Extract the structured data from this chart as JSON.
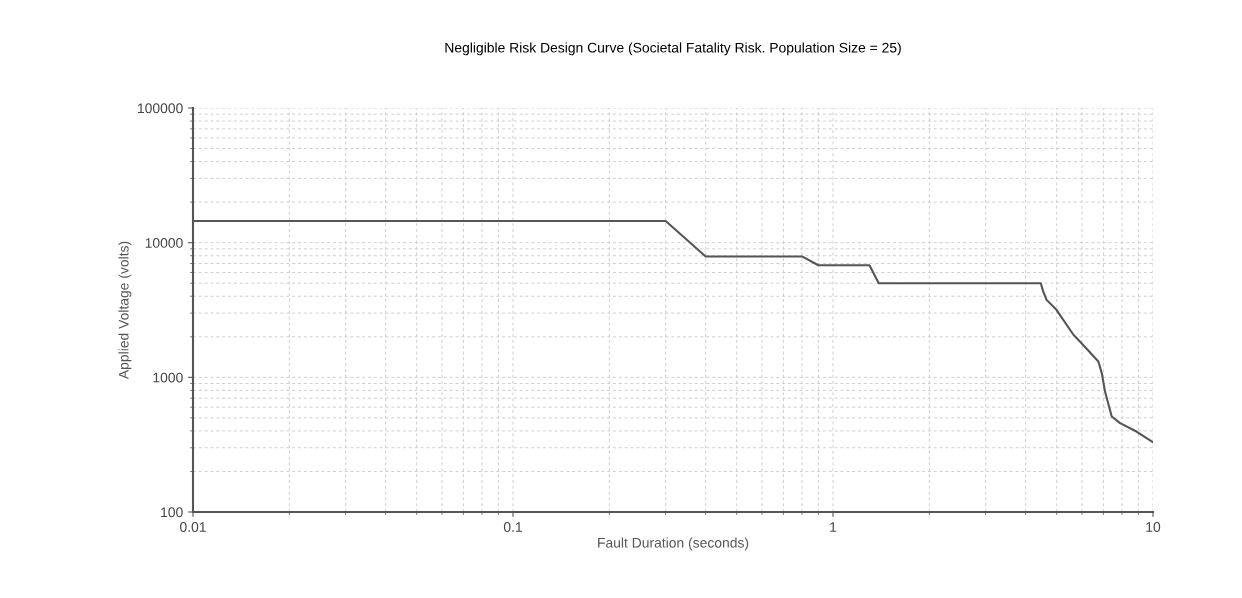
{
  "chart_data": {
    "type": "line",
    "title": "Negligible Risk Design Curve (Societal Fatality Risk. Population Size = 25)",
    "xlabel": "Fault Duration (seconds)",
    "ylabel": "Applied Voltage (volts)",
    "log": "xy",
    "grid": true,
    "legend": false,
    "marker": "none",
    "line_style": "solid",
    "xlim": [
      0.01,
      10
    ],
    "ylim": [
      100,
      100000
    ],
    "xticks": [
      0.01,
      0.1,
      1,
      10
    ],
    "yticks": [
      100,
      1000,
      10000,
      100000
    ],
    "series": [
      {
        "color": "#555555",
        "x": [
          0.01,
          0.3,
          0.4,
          0.8,
          0.9,
          1.3,
          1.39,
          4.46,
          4.54,
          4.65,
          5.0,
          5.64,
          5.92,
          6.75,
          6.92,
          7.08,
          7.43,
          7.89,
          8.88,
          10
        ],
        "values": [
          14500,
          14500,
          7900,
          7900,
          6800,
          6800,
          5000,
          5000,
          4330,
          3760,
          3160,
          2070,
          1840,
          1310,
          1070,
          784,
          512,
          457,
          396,
          330
        ]
      }
    ]
  }
}
